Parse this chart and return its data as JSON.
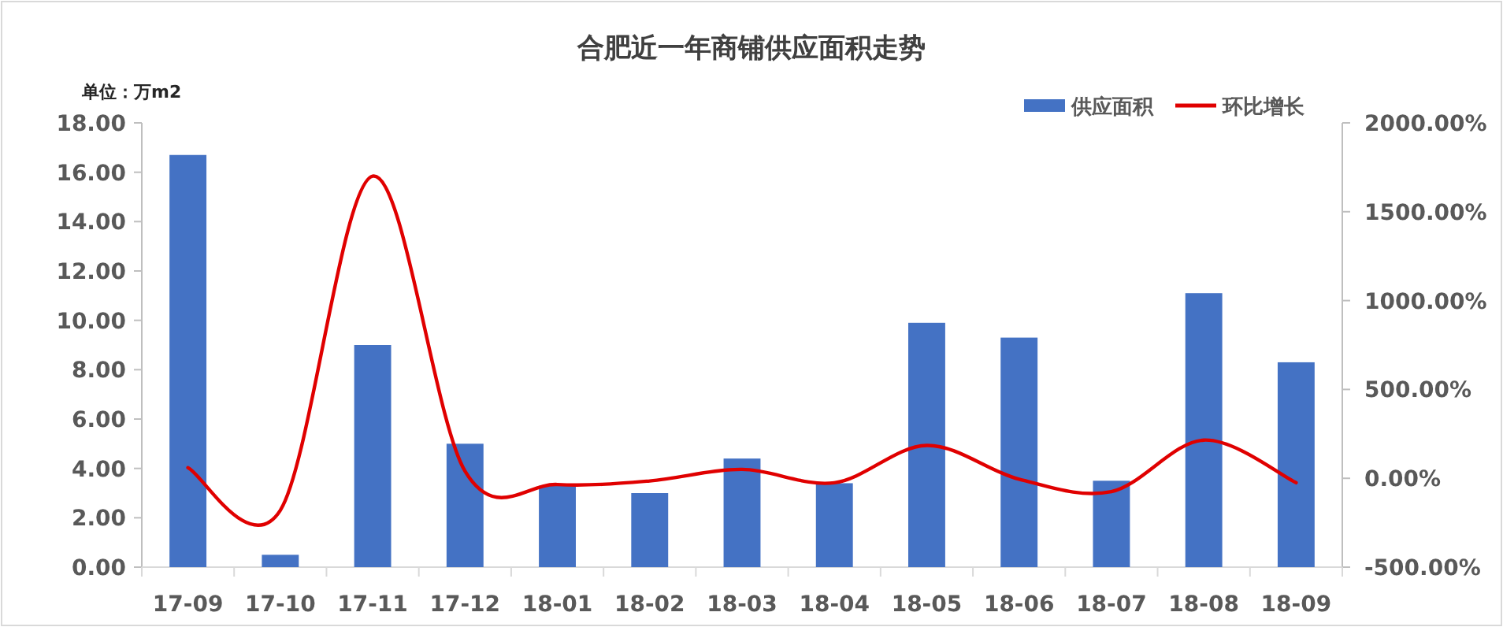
{
  "chart_data": {
    "type": "bar",
    "title": "合肥近一年商铺供应面积走势",
    "ylabel": "单位：万m2",
    "categories": [
      "17-09",
      "17-10",
      "17-11",
      "17-12",
      "18-01",
      "18-02",
      "18-03",
      "18-04",
      "18-05",
      "18-06",
      "18-07",
      "18-08",
      "18-09"
    ],
    "series": [
      {
        "name": "供应面积",
        "color": "#4472c4",
        "values": [
          16.7,
          0.5,
          9.0,
          5.0,
          3.3,
          3.0,
          4.4,
          3.4,
          9.9,
          9.3,
          3.5,
          11.1,
          8.3
        ]
      },
      {
        "name": "环比增长",
        "type": "line",
        "axis": "y2",
        "color": "#e00000",
        "values": [
          60,
          -180,
          1700,
          40,
          -35,
          -15,
          50,
          -25,
          185,
          -5,
          -75,
          215,
          -25
        ]
      }
    ],
    "ylim": [
      0,
      18
    ],
    "yticks": [
      {
        "value": 0,
        "label": "0.00"
      },
      {
        "value": 2,
        "label": "2.00"
      },
      {
        "value": 4,
        "label": "4.00"
      },
      {
        "value": 6,
        "label": "6.00"
      },
      {
        "value": 8,
        "label": "8.00"
      },
      {
        "value": 10,
        "label": "10.00"
      },
      {
        "value": 12,
        "label": "12.00"
      },
      {
        "value": 14,
        "label": "14.00"
      },
      {
        "value": 16,
        "label": "16.00"
      },
      {
        "value": 18,
        "label": "18.00"
      }
    ],
    "y2lim": [
      -500,
      2000
    ],
    "y2ticks": [
      {
        "value": -500,
        "label": "-500.00%"
      },
      {
        "value": 0,
        "label": "0.00%"
      },
      {
        "value": 500,
        "label": "500.00%"
      },
      {
        "value": 1000,
        "label": "1000.00%"
      },
      {
        "value": 1500,
        "label": "1500.00%"
      },
      {
        "value": 2000,
        "label": "2000.00%"
      }
    ],
    "legend": "top right",
    "grid": false,
    "marker": "none",
    "line_style": "solid"
  }
}
